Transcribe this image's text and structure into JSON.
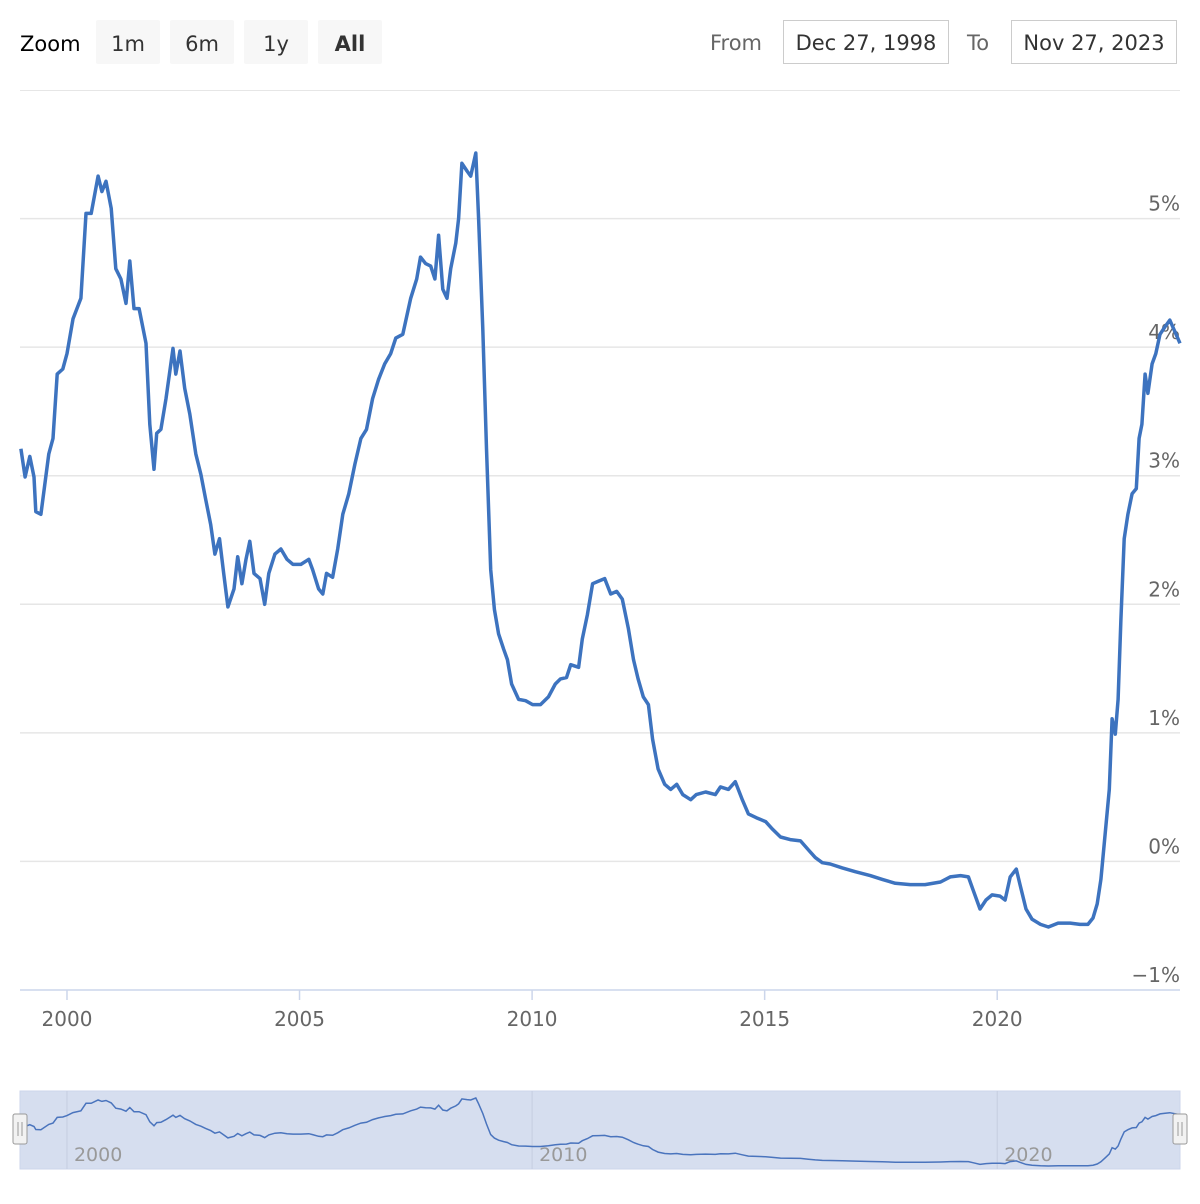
{
  "range_selector": {
    "zoom_label": "Zoom",
    "buttons": [
      "1m",
      "6m",
      "1y",
      "All"
    ],
    "from_label": "From",
    "from": "Dec 27, 1998",
    "to_label": "To",
    "to": "Nov 27, 2023"
  },
  "chart_data": {
    "type": "line",
    "color": "#3d73bf",
    "x": [
      1999.01,
      1999.1,
      1999.2,
      1999.29,
      1999.33,
      1999.44,
      1999.61,
      1999.7,
      1999.79,
      1999.91,
      2000.0,
      2000.13,
      2000.3,
      2000.41,
      2000.52,
      2000.67,
      2000.75,
      2000.84,
      2000.95,
      2001.05,
      2001.16,
      2001.27,
      2001.35,
      2001.44,
      2001.55,
      2001.7,
      2001.78,
      2001.87,
      2001.93,
      2002.02,
      2002.13,
      2002.28,
      2002.34,
      2002.43,
      2002.53,
      2002.64,
      2002.77,
      2002.88,
      2002.98,
      2003.09,
      2003.18,
      2003.28,
      2003.37,
      2003.46,
      2003.59,
      2003.67,
      2003.76,
      2003.85,
      2003.93,
      2004.02,
      2004.15,
      2004.25,
      2004.34,
      2004.47,
      2004.6,
      2004.73,
      2004.86,
      2005.03,
      2005.2,
      2005.28,
      2005.41,
      2005.5,
      2005.58,
      2005.71,
      2005.82,
      2005.93,
      2006.06,
      2006.19,
      2006.32,
      2006.44,
      2006.57,
      2006.7,
      2006.83,
      2006.96,
      2007.07,
      2007.22,
      2007.39,
      2007.52,
      2007.6,
      2007.71,
      2007.82,
      2007.91,
      2007.99,
      2008.08,
      2008.17,
      2008.25,
      2008.36,
      2008.42,
      2008.49,
      2008.6,
      2008.68,
      2008.79,
      2008.85,
      2008.94,
      2009.02,
      2009.11,
      2009.19,
      2009.28,
      2009.39,
      2009.47,
      2009.56,
      2009.71,
      2009.86,
      2010.01,
      2010.18,
      2010.35,
      2010.5,
      2010.61,
      2010.74,
      2010.83,
      2011.0,
      2011.08,
      2011.19,
      2011.3,
      2011.43,
      2011.56,
      2011.69,
      2011.82,
      2011.94,
      2012.07,
      2012.18,
      2012.28,
      2012.39,
      2012.5,
      2012.59,
      2012.71,
      2012.85,
      2012.98,
      2013.11,
      2013.24,
      2013.41,
      2013.53,
      2013.73,
      2013.94,
      2014.05,
      2014.22,
      2014.37,
      2014.52,
      2014.65,
      2014.82,
      2015.02,
      2015.17,
      2015.34,
      2015.55,
      2015.77,
      2015.94,
      2016.09,
      2016.24,
      2016.41,
      2016.67,
      2016.95,
      2017.27,
      2017.53,
      2017.81,
      2018.13,
      2018.45,
      2018.78,
      2018.99,
      2019.21,
      2019.38,
      2019.48,
      2019.63,
      2019.76,
      2019.89,
      2020.06,
      2020.17,
      2020.28,
      2020.41,
      2020.49,
      2020.62,
      2020.75,
      2020.93,
      2021.1,
      2021.31,
      2021.57,
      2021.78,
      2021.95,
      2022.06,
      2022.15,
      2022.23,
      2022.32,
      2022.41,
      2022.47,
      2022.54,
      2022.6,
      2022.66,
      2022.73,
      2022.81,
      2022.9,
      2022.99,
      2023.05,
      2023.11,
      2023.18,
      2023.24,
      2023.33,
      2023.41,
      2023.5,
      2023.61,
      2023.71,
      2023.82,
      2023.93
    ],
    "values": [
      3.21,
      2.99,
      3.15,
      2.99,
      2.72,
      2.7,
      3.17,
      3.29,
      3.79,
      3.83,
      3.95,
      4.22,
      4.38,
      5.04,
      5.04,
      5.33,
      5.21,
      5.29,
      5.08,
      4.61,
      4.53,
      4.34,
      4.67,
      4.3,
      4.3,
      4.03,
      3.4,
      3.05,
      3.33,
      3.36,
      3.6,
      3.99,
      3.79,
      3.97,
      3.68,
      3.48,
      3.17,
      3.01,
      2.82,
      2.62,
      2.39,
      2.51,
      2.24,
      1.98,
      2.12,
      2.37,
      2.16,
      2.35,
      2.49,
      2.24,
      2.2,
      2.0,
      2.24,
      2.39,
      2.43,
      2.35,
      2.31,
      2.31,
      2.35,
      2.27,
      2.12,
      2.08,
      2.24,
      2.21,
      2.43,
      2.7,
      2.86,
      3.09,
      3.29,
      3.36,
      3.6,
      3.75,
      3.87,
      3.95,
      4.07,
      4.1,
      4.38,
      4.53,
      4.7,
      4.65,
      4.63,
      4.53,
      4.87,
      4.45,
      4.38,
      4.61,
      4.81,
      5.0,
      5.43,
      5.37,
      5.33,
      5.51,
      5.0,
      4.14,
      3.21,
      2.27,
      1.96,
      1.77,
      1.65,
      1.57,
      1.38,
      1.26,
      1.25,
      1.22,
      1.22,
      1.28,
      1.38,
      1.42,
      1.43,
      1.53,
      1.51,
      1.73,
      1.92,
      2.16,
      2.18,
      2.2,
      2.08,
      2.1,
      2.04,
      1.81,
      1.57,
      1.42,
      1.28,
      1.22,
      0.95,
      0.72,
      0.6,
      0.56,
      0.6,
      0.52,
      0.48,
      0.52,
      0.54,
      0.52,
      0.58,
      0.56,
      0.62,
      0.48,
      0.37,
      0.34,
      0.31,
      0.25,
      0.19,
      0.17,
      0.16,
      0.09,
      0.03,
      -0.01,
      -0.02,
      -0.05,
      -0.08,
      -0.11,
      -0.14,
      -0.17,
      -0.18,
      -0.18,
      -0.16,
      -0.12,
      -0.11,
      -0.12,
      -0.22,
      -0.37,
      -0.3,
      -0.26,
      -0.27,
      -0.3,
      -0.12,
      -0.06,
      -0.18,
      -0.37,
      -0.45,
      -0.49,
      -0.51,
      -0.48,
      -0.48,
      -0.49,
      -0.49,
      -0.44,
      -0.33,
      -0.14,
      0.21,
      0.56,
      1.11,
      0.99,
      1.26,
      1.88,
      2.51,
      2.7,
      2.86,
      2.9,
      3.29,
      3.4,
      3.79,
      3.64,
      3.87,
      3.95,
      4.1,
      4.16,
      4.21,
      4.12,
      4.03
    ],
    "xlim": [
      1998.99,
      2023.93
    ],
    "xticks": [
      2000,
      2005,
      2010,
      2015,
      2020
    ],
    "ylim": [
      -1,
      6
    ],
    "yticks": [
      {
        "value": -1,
        "label": "−1%"
      },
      {
        "value": 0,
        "label": "0%"
      },
      {
        "value": 1,
        "label": "1%"
      },
      {
        "value": 2,
        "label": "2%"
      },
      {
        "value": 3,
        "label": "3%"
      },
      {
        "value": 4,
        "label": "4%"
      },
      {
        "value": 5,
        "label": "5%"
      }
    ],
    "grid": true,
    "navigator": {
      "xticks": [
        2000,
        2010,
        2020
      ]
    }
  }
}
